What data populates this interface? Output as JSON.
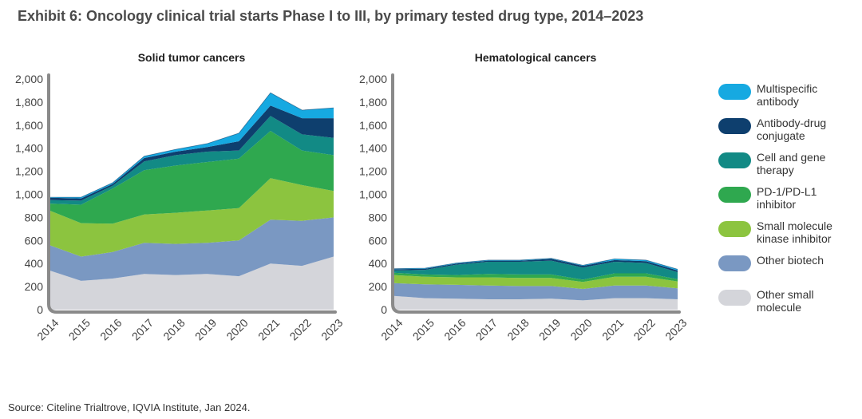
{
  "title": "Exhibit 6:  Oncology clinical trial starts Phase I to III, by primary tested drug type, 2014–2023",
  "source": "Source: Citeline Trialtrove, IQVIA Institute, Jan 2024.",
  "colors": {
    "Multispecific antibody": "#16a9e1",
    "Antibody-drug conjugate": "#0e3f6e",
    "Cell and gene therapy": "#128a85",
    "PD-1/PD-L1 inhibitor": "#2fa84f",
    "Small molecule kinase inhibitor": "#8cc43f",
    "Other biotech": "#7a98c2",
    "Other small molecule": "#d4d5da"
  },
  "legend": [
    {
      "key": "Multispecific antibody",
      "line1": "Multispecific",
      "line2": "antibody"
    },
    {
      "key": "Antibody-drug conjugate",
      "line1": "Antibody-drug",
      "line2": "conjugate"
    },
    {
      "key": "Cell and gene therapy",
      "line1": "Cell and gene",
      "line2": "therapy"
    },
    {
      "key": "PD-1/PD-L1 inhibitor",
      "line1": "PD-1/PD-L1",
      "line2": "inhibitor"
    },
    {
      "key": "Small molecule kinase inhibitor",
      "line1": "Small molecule",
      "line2": "kinase inhibitor"
    },
    {
      "key": "Other biotech",
      "line1": "Other biotech",
      "line2": ""
    },
    {
      "key": "Other small molecule",
      "line1": "Other small",
      "line2": "molecule"
    }
  ],
  "chart_data": [
    {
      "type": "area",
      "stacked": true,
      "title": "Solid tumor cancers",
      "x": [
        "2014",
        "2015",
        "2016",
        "2017",
        "2018",
        "2019",
        "2020",
        "2021",
        "2022",
        "2023"
      ],
      "ylim": [
        0,
        2000
      ],
      "yticks": [
        "0",
        "200",
        "400",
        "600",
        "800",
        "1,000",
        "1,200",
        "1,400",
        "1,600",
        "1,800",
        "2,000"
      ],
      "series": [
        {
          "name": "Other small molecule",
          "values": [
            340,
            250,
            270,
            310,
            300,
            310,
            290,
            400,
            380,
            460
          ]
        },
        {
          "name": "Other biotech",
          "values": [
            220,
            210,
            230,
            270,
            270,
            270,
            310,
            380,
            390,
            340
          ]
        },
        {
          "name": "Small molecule kinase inhibitor",
          "values": [
            300,
            290,
            245,
            245,
            270,
            280,
            280,
            360,
            310,
            230
          ]
        },
        {
          "name": "PD-1/PD-L1 inhibitor",
          "values": [
            60,
            160,
            305,
            385,
            410,
            420,
            430,
            410,
            300,
            310
          ]
        },
        {
          "name": "Cell and gene therapy",
          "values": [
            30,
            35,
            25,
            75,
            90,
            90,
            70,
            130,
            140,
            150
          ]
        },
        {
          "name": "Antibody-drug conjugate",
          "values": [
            20,
            20,
            15,
            30,
            30,
            40,
            80,
            90,
            140,
            170
          ]
        },
        {
          "name": "Multispecific antibody",
          "values": [
            5,
            10,
            10,
            15,
            20,
            30,
            70,
            110,
            70,
            90
          ]
        }
      ]
    },
    {
      "type": "area",
      "stacked": true,
      "title": "Hematological cancers",
      "x": [
        "2014",
        "2015",
        "2016",
        "2017",
        "2018",
        "2019",
        "2020",
        "2021",
        "2022",
        "2023"
      ],
      "ylim": [
        0,
        2000
      ],
      "yticks": [
        "0",
        "200",
        "400",
        "600",
        "800",
        "1,000",
        "1,200",
        "1,400",
        "1,600",
        "1,800",
        "2,000"
      ],
      "series": [
        {
          "name": "Other small molecule",
          "values": [
            120,
            100,
            95,
            90,
            90,
            95,
            80,
            100,
            100,
            90
          ]
        },
        {
          "name": "Other biotech",
          "values": [
            110,
            120,
            120,
            120,
            115,
            110,
            100,
            110,
            110,
            95
          ]
        },
        {
          "name": "Small molecule kinase inhibitor",
          "values": [
            70,
            65,
            65,
            70,
            70,
            70,
            60,
            75,
            75,
            60
          ]
        },
        {
          "name": "PD-1/PD-L1 inhibitor",
          "values": [
            20,
            20,
            20,
            30,
            30,
            30,
            20,
            30,
            30,
            20
          ]
        },
        {
          "name": "Cell and gene therapy",
          "values": [
            20,
            40,
            90,
            105,
            110,
            120,
            105,
            100,
            90,
            60
          ]
        },
        {
          "name": "Antibody-drug conjugate",
          "values": [
            10,
            10,
            10,
            10,
            10,
            15,
            15,
            15,
            15,
            15
          ]
        },
        {
          "name": "Multispecific antibody",
          "values": [
            5,
            5,
            5,
            5,
            5,
            5,
            5,
            10,
            10,
            10
          ]
        }
      ]
    }
  ]
}
